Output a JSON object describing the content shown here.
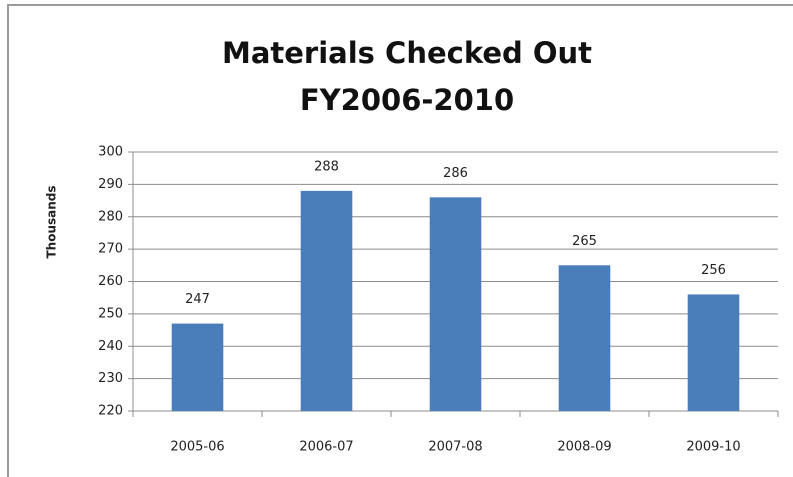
{
  "chart_data": {
    "type": "bar",
    "title": [
      "Materials Checked Out",
      "FY2006-2010"
    ],
    "y_label": "Thousands",
    "categories": [
      "2005-06",
      "2006-07",
      "2007-08",
      "2008-09",
      "2009-10"
    ],
    "values": [
      247,
      288,
      286,
      265,
      256
    ],
    "color": "#4a7ebb",
    "ylim": [
      220,
      300
    ],
    "yticks": [
      220,
      230,
      240,
      250,
      260,
      270,
      280,
      290,
      300
    ],
    "grid": true
  }
}
